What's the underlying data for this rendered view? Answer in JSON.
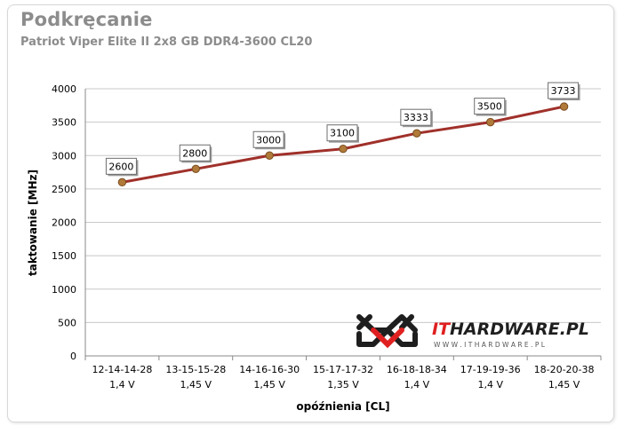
{
  "header": {
    "title": "Podkręcanie",
    "subtitle": "Patriot Viper Elite II 2x8 GB DDR4-3600 CL20"
  },
  "chart_data": {
    "type": "line",
    "title": "Podkręcanie",
    "subtitle": "Patriot Viper Elite II 2x8 GB DDR4-3600 CL20",
    "xlabel": "opóźnienia [CL]",
    "ylabel": "taktowanie [MHz]",
    "ylim": [
      0,
      4000
    ],
    "yticks": [
      0,
      500,
      1000,
      1500,
      2000,
      2500,
      3000,
      3500,
      4000
    ],
    "grid": true,
    "categories": [
      [
        "12-14-14-28",
        "1,4 V"
      ],
      [
        "13-15-15-28",
        "1,45 V"
      ],
      [
        "14-16-16-30",
        "1,45 V"
      ],
      [
        "15-17-17-32",
        "1,35 V"
      ],
      [
        "16-18-18-34",
        "1,4 V"
      ],
      [
        "17-19-19-36",
        "1,4 V"
      ],
      [
        "18-20-20-38",
        "1,45 V"
      ]
    ],
    "series": [
      {
        "values": [
          2600,
          2800,
          3000,
          3100,
          3333,
          3500,
          3733
        ],
        "color": "#a0302a"
      }
    ]
  },
  "watermark": {
    "brand_it": "IT",
    "brand_rest": "HARDWARE.PL",
    "url": "W W W . I T H A R D W A R E . P L",
    "accent_color": "#e02020"
  }
}
